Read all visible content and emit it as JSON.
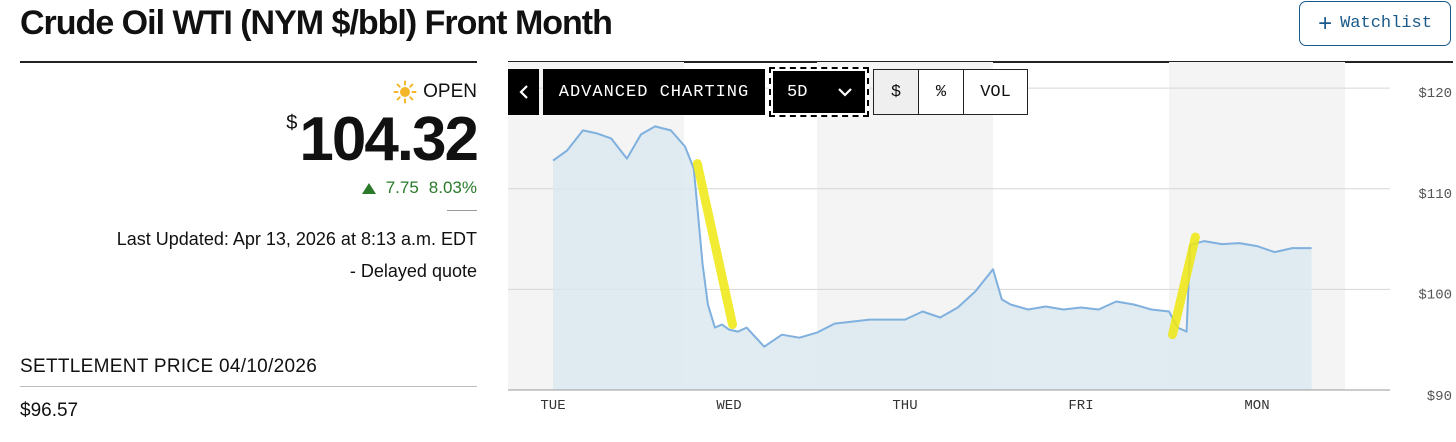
{
  "title": "Crude Oil WTI (NYM $/bbl) Front Month",
  "watchlist": {
    "label": "Watchlist",
    "icon": "plus-icon"
  },
  "quote": {
    "market_state": "OPEN",
    "currency_symbol": "$",
    "price": "104.32",
    "change": "7.75",
    "change_percent": "8.03%",
    "direction": "up",
    "last_updated": "Last Updated: Apr 13, 2026 at 8:13 a.m. EDT",
    "delayed_note": "-  Delayed quote"
  },
  "settlement": {
    "label": "SETTLEMENT PRICE 04/10/2026",
    "value": "$96.57"
  },
  "toolbar": {
    "back_icon": "chevron-left-icon",
    "advanced_label": "ADVANCED CHARTING",
    "range_label": "5D",
    "range_icon": "chevron-down-icon",
    "options": [
      "$",
      "%",
      "VOL"
    ],
    "active_option": "$"
  },
  "colors": {
    "line": "#7fb0de",
    "area": "#dbe7f0",
    "positive": "#2a7a2a",
    "highlight": "#f0e810",
    "accent": "#1a5a8a"
  },
  "chart_data": {
    "type": "area",
    "x_ticks": [
      "TUE",
      "WED",
      "THU",
      "FRI",
      "MON"
    ],
    "y_ticks": [
      "$120",
      "$110",
      "$100",
      "$90"
    ],
    "y_values_ticks": [
      120,
      110,
      100,
      90
    ],
    "ylim": [
      90,
      122
    ],
    "x_domain": [
      0,
      4.31
    ],
    "grid": "horizontal",
    "shaded_days": [
      "TUE",
      "THU",
      "MON"
    ],
    "series": [
      {
        "x": [
          0,
          0.08,
          0.17,
          0.25,
          0.33,
          0.42,
          0.5,
          0.58,
          0.67,
          0.75,
          0.8,
          0.85,
          0.88,
          0.92,
          0.96,
          1.0,
          1.05,
          1.1,
          1.2,
          1.3,
          1.4,
          1.5,
          1.6,
          1.7,
          1.8,
          1.9,
          2.0,
          2.1,
          2.2,
          2.3,
          2.4,
          2.5,
          2.55,
          2.6,
          2.7,
          2.8,
          2.9,
          3.0,
          3.1,
          3.2,
          3.3,
          3.4,
          3.5,
          3.55,
          3.6,
          3.62,
          3.7,
          3.8,
          3.9,
          4.0,
          4.1,
          4.2,
          4.31
        ],
        "y": [
          112.8,
          113.8,
          115.8,
          115.5,
          115.0,
          113.0,
          115.4,
          116.2,
          115.8,
          114.2,
          112.0,
          102.5,
          98.5,
          96.2,
          96.5,
          96.0,
          95.8,
          96.2,
          94.3,
          95.5,
          95.2,
          95.7,
          96.6,
          96.8,
          97.0,
          97.0,
          97.0,
          97.8,
          97.2,
          98.2,
          99.8,
          102.0,
          99.0,
          98.5,
          98.0,
          98.3,
          98.0,
          98.2,
          98.0,
          98.8,
          98.5,
          98.0,
          97.8,
          96.2,
          95.8,
          104.4,
          104.8,
          104.5,
          104.6,
          104.3,
          103.7,
          104.1,
          104.1
        ]
      }
    ],
    "annotations": [
      {
        "type": "highlight",
        "x": [
          0.82,
          1.02
        ],
        "y": [
          112.5,
          96.5
        ]
      },
      {
        "type": "highlight",
        "x": [
          3.52,
          3.65
        ],
        "y": [
          95.5,
          105.2
        ]
      }
    ]
  }
}
